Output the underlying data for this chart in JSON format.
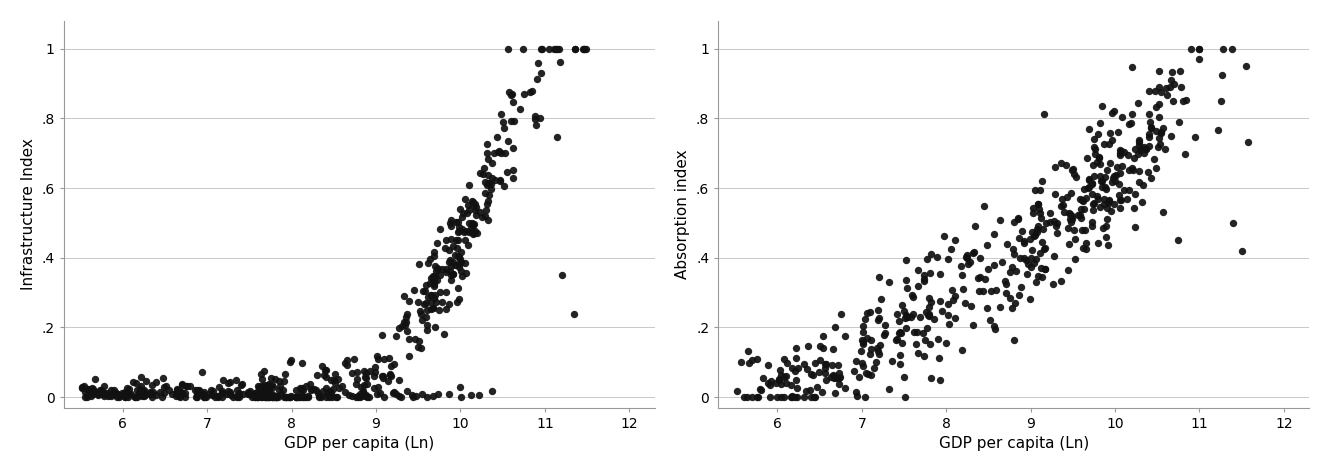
{
  "subplot1": {
    "ylabel": "Infrastructure Index",
    "xlabel": "GDP per capita (Ln)",
    "xlim": [
      5.3,
      12.3
    ],
    "ylim": [
      -0.03,
      1.08
    ],
    "yticks": [
      0,
      0.2,
      0.4,
      0.6,
      0.8,
      1.0
    ],
    "ytick_labels": [
      "0",
      ".2",
      ".4",
      ".6",
      ".8",
      "1"
    ],
    "xticks": [
      6,
      7,
      8,
      9,
      10,
      11,
      12
    ],
    "xtick_labels": [
      "6",
      "7",
      "8",
      "9",
      "10",
      "11",
      "12"
    ]
  },
  "subplot2": {
    "ylabel": "Absorption index",
    "xlabel": "GDP per capita (Ln)",
    "xlim": [
      5.3,
      12.3
    ],
    "ylim": [
      -0.03,
      1.08
    ],
    "yticks": [
      0,
      0.2,
      0.4,
      0.6,
      0.8,
      1.0
    ],
    "ytick_labels": [
      "0",
      ".2",
      ".4",
      ".6",
      ".8",
      "1"
    ],
    "xticks": [
      6,
      7,
      8,
      9,
      10,
      11,
      12
    ],
    "xtick_labels": [
      "6",
      "7",
      "8",
      "9",
      "10",
      "11",
      "12"
    ]
  },
  "dot_color": "#111111",
  "dot_size": 28,
  "background_color": "#ffffff",
  "grid_color": "#c8c8c8",
  "grid_linewidth": 0.7,
  "spine_color": "#999999",
  "seed1": 42,
  "seed2": 123
}
